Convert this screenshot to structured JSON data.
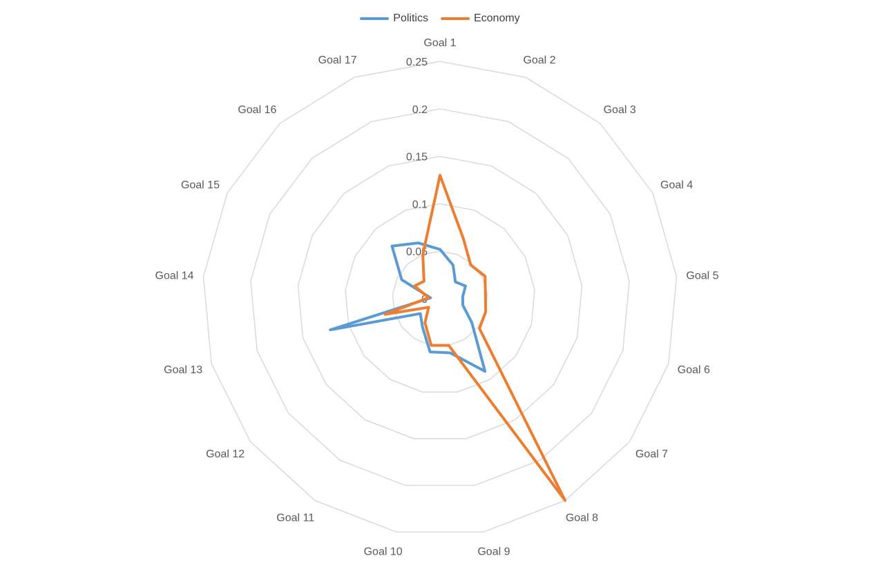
{
  "chart_data": {
    "type": "radar",
    "categories": [
      "Goal 1",
      "Goal 2",
      "Goal 3",
      "Goal 4",
      "Goal 5",
      "Goal 6",
      "Goal 7",
      "Goal 8",
      "Goal 9",
      "Goal 10",
      "Goal 11",
      "Goal 12",
      "Goal 13",
      "Goal 14",
      "Goal 15",
      "Goal 16",
      "Goal 17"
    ],
    "series": [
      {
        "name": "Politics",
        "color": "#5B9BD5",
        "values": [
          0.052,
          0.038,
          0.024,
          0.03,
          0.024,
          0.025,
          0.042,
          0.09,
          0.058,
          0.057,
          0.035,
          0.026,
          0.12,
          0.01,
          0.045,
          0.075,
          0.063
        ]
      },
      {
        "name": "Economy",
        "color": "#ED7D31",
        "values": [
          0.13,
          0.068,
          0.048,
          0.053,
          0.048,
          0.05,
          0.052,
          0.25,
          0.05,
          0.05,
          0.03,
          0.015,
          0.06,
          0.012,
          0.03,
          0.025,
          0.05
        ]
      }
    ],
    "rlim": [
      0,
      0.25
    ],
    "ticks": [
      "0",
      "0.05",
      "0.1",
      "0.15",
      "0.2",
      "0.25"
    ],
    "grid": true,
    "legend_position": "top"
  },
  "legend": {
    "items": [
      {
        "label": "Politics",
        "color": "#5B9BD5"
      },
      {
        "label": "Economy",
        "color": "#ED7D31"
      }
    ]
  }
}
